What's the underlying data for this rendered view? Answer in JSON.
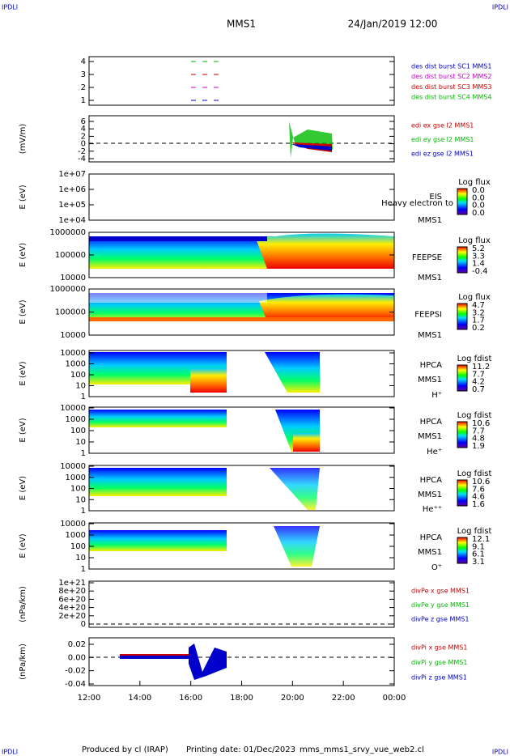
{
  "header": {
    "corner_labels": [
      "IPDLI",
      "IPDLI",
      "IPDLI",
      "IPDLI"
    ],
    "title": "MMS1",
    "date": "24/Jan/2019 12:00"
  },
  "panels": [
    {
      "ylabel": "",
      "yticks": [
        "4",
        "3",
        "2",
        "1"
      ],
      "legend": [
        {
          "text": "des dist burst SC1 MMS1",
          "color": "#0000cc"
        },
        {
          "text": "des dist burst SC2 MMS2",
          "color": "#cc00cc"
        },
        {
          "text": "des dist burst SC3 MMS3",
          "color": "#cc0000"
        },
        {
          "text": "des dist burst SC4 MMS4",
          "color": "#00bb00"
        }
      ]
    },
    {
      "ylabel": "(mV/m)",
      "yticks": [
        "6",
        "4",
        "2",
        "0",
        "-2",
        "-4"
      ],
      "legend": [
        {
          "text": "edi ex gse l2 MMS1",
          "color": "#cc0000"
        },
        {
          "text": "edi ey gse l2 MMS1",
          "color": "#00bb00"
        },
        {
          "text": "edi ez gse l2 MMS1",
          "color": "#0000cc"
        }
      ]
    },
    {
      "ylabel": "E (eV)",
      "yticks": [
        "1e+07",
        "1e+06",
        "1e+05",
        "1e+04"
      ],
      "side": [
        "EIS",
        "Heavy electron to",
        "MMS1"
      ],
      "colorbar": {
        "title": "Log flux",
        "labels": [
          "0.0",
          "0.0",
          "0.0",
          "0.0"
        ]
      }
    },
    {
      "ylabel": "E (eV)",
      "yticks": [
        "1000000",
        "100000",
        "10000"
      ],
      "side": [
        "FEEPSE",
        "MMS1"
      ],
      "colorbar": {
        "title": "Log flux",
        "labels": [
          "5.2",
          "3.3",
          "1.4",
          "-0.4"
        ]
      }
    },
    {
      "ylabel": "E (eV)",
      "yticks": [
        "1000000",
        "100000",
        "10000"
      ],
      "side": [
        "FEEPSI",
        "MMS1"
      ],
      "colorbar": {
        "title": "Log flux",
        "labels": [
          "4.7",
          "3.2",
          "1.7",
          "0.2"
        ]
      }
    },
    {
      "ylabel": "E (eV)",
      "yticks": [
        "10000",
        "1000",
        "100",
        "10",
        "1"
      ],
      "side": [
        "HPCA",
        "MMS1",
        "H⁺"
      ],
      "colorbar": {
        "title": "Log fdist",
        "labels": [
          "11.2",
          "7.7",
          "4.2",
          "0.7"
        ]
      }
    },
    {
      "ylabel": "E (eV)",
      "yticks": [
        "10000",
        "1000",
        "100",
        "10",
        "1"
      ],
      "side": [
        "HPCA",
        "MMS1",
        "He⁺"
      ],
      "colorbar": {
        "title": "Log fdist",
        "labels": [
          "10.6",
          "7.7",
          "4.8",
          "1.9"
        ]
      }
    },
    {
      "ylabel": "E (eV)",
      "yticks": [
        "10000",
        "1000",
        "100",
        "10",
        "1"
      ],
      "side": [
        "HPCA",
        "MMS1",
        "He⁺⁺"
      ],
      "colorbar": {
        "title": "Log fdist",
        "labels": [
          "10.6",
          "7.6",
          "4.6",
          "1.6"
        ]
      }
    },
    {
      "ylabel": "E (eV)",
      "yticks": [
        "10000",
        "1000",
        "100",
        "10",
        "1"
      ],
      "side": [
        "HPCA",
        "MMS1",
        "O⁺"
      ],
      "colorbar": {
        "title": "Log fdist",
        "labels": [
          "12.1",
          "9.1",
          "6.1",
          "3.1"
        ]
      }
    },
    {
      "ylabel": "(nPa/km)",
      "yticks": [
        "1e+21",
        "8e+20",
        "6e+20",
        "4e+20",
        "2e+20",
        "0"
      ],
      "legend": [
        {
          "text": "divPe x gse MMS1",
          "color": "#cc0000"
        },
        {
          "text": "divPe y gse MMS1",
          "color": "#00bb00"
        },
        {
          "text": "divPe z gse MMS1",
          "color": "#0000cc"
        }
      ]
    },
    {
      "ylabel": "(nPa/km)",
      "yticks": [
        "0.02",
        "0.00",
        "-0.02",
        "-0.04"
      ],
      "legend": [
        {
          "text": "divPi x gse MMS1",
          "color": "#cc0000"
        },
        {
          "text": "divPi y gse MMS1",
          "color": "#00bb00"
        },
        {
          "text": "divPi z gse MMS1",
          "color": "#0000cc"
        }
      ]
    }
  ],
  "xticks": [
    "12:00",
    "14:00",
    "16:00",
    "18:00",
    "20:00",
    "22:00",
    "00:00"
  ],
  "footer": [
    "Produced by cl (IRAP)",
    "Printing date: 01/Dec/2023",
    "mms_mms1_srvy_vue_web2.cl"
  ]
}
